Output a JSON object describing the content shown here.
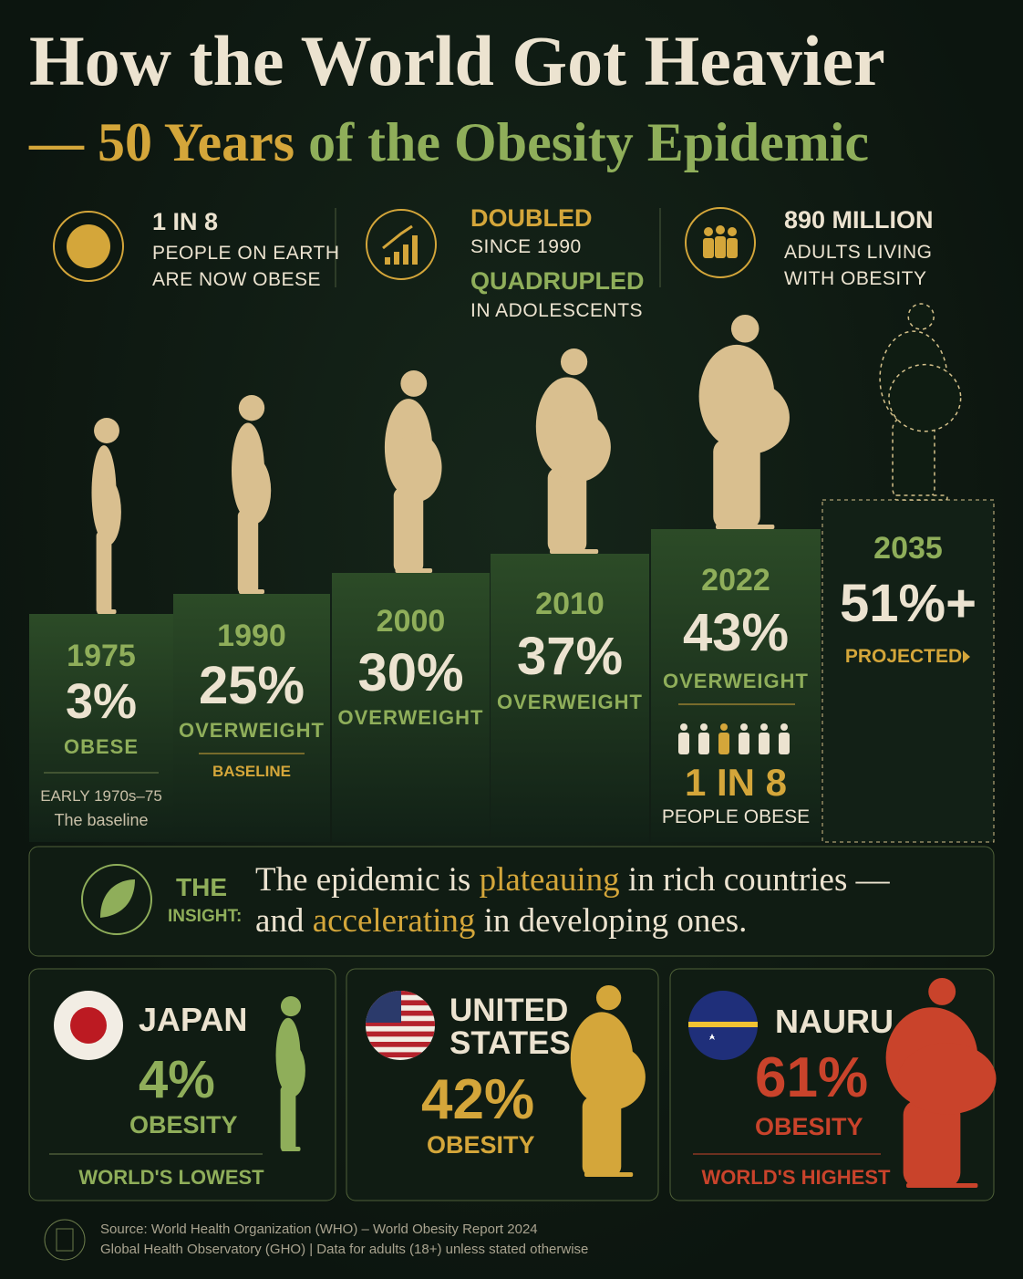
{
  "header": {
    "title": "How the World Got Heavier",
    "subtitle": {
      "dash": "—",
      "highlight": "50 Years",
      "rest": "of the Obesity Epidemic"
    }
  },
  "stats": [
    {
      "lines": [
        "1 IN 8",
        "PEOPLE ON EARTH",
        "ARE NOW OBESE"
      ]
    },
    {
      "lines": [
        "DOUBLED",
        "SINCE 1990",
        "QUADRUPLED",
        "IN ADOLESCENTS"
      ]
    },
    {
      "lines": [
        "890 MILLION",
        "ADULTS LIVING",
        "WITH OBESITY"
      ]
    }
  ],
  "steps": [
    {
      "year": "1975",
      "value": "3%",
      "label": "OBESE",
      "notes": [
        "EARLY 1970s–75",
        "The baseline"
      ]
    },
    {
      "year": "1990",
      "value": "25%",
      "label": "OVERWEIGHT",
      "notes": [
        "BASELINE"
      ]
    },
    {
      "year": "2000",
      "value": "30%",
      "label": "OVERWEIGHT"
    },
    {
      "year": "2010",
      "value": "37%",
      "label": "OVERWEIGHT"
    },
    {
      "year": "2022",
      "value": "43%",
      "label": "OVERWEIGHT",
      "notes": [
        "1 IN 8",
        "PEOPLE OBESE"
      ]
    },
    {
      "year": "2035",
      "value": "51%+",
      "label": "PROJECTED"
    }
  ],
  "insight": {
    "label": [
      "THE",
      "INSIGHT:"
    ],
    "text": [
      "The epidemic is ",
      "plateauing",
      " in rich countries —",
      "and ",
      "accelerating",
      " in developing ones."
    ]
  },
  "countries": [
    {
      "name": [
        "JAPAN"
      ],
      "value": "4%",
      "label": "OBESITY",
      "note": "WORLD'S LOWEST"
    },
    {
      "name": [
        "UNITED",
        "STATES"
      ],
      "value": "42%",
      "label": "OBESITY"
    },
    {
      "name": [
        "NAURU"
      ],
      "value": "61%",
      "label": "OBESITY",
      "note": "WORLD'S HIGHEST"
    }
  ],
  "footer": [
    "Source: World Health Organization (WHO) – World Obesity Report 2024",
    "Global Health Observatory (GHO) | Data for adults (18+) unless stated otherwise"
  ]
}
